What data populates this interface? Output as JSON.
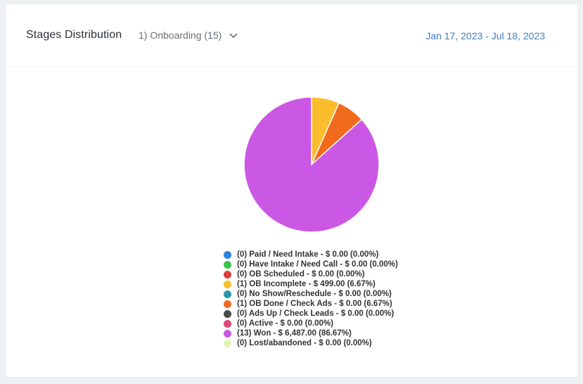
{
  "header": {
    "title": "Stages Distribution",
    "pipeline": "1) Onboarding (15)",
    "date_range": "Jan 17, 2023 - Jul 18, 2023"
  },
  "icons": {
    "dropdown": "chevron-down-icon"
  },
  "chart_data": {
    "type": "pie",
    "start_angle": "top",
    "direction": "clockwise",
    "slices": [
      {
        "label": "(0) Paid / Need Intake - $ 0.00 (0.00%)",
        "count": 0,
        "amount": 0.0,
        "percent": 0.0,
        "color": "#2d7fe0"
      },
      {
        "label": "(0) Have Intake / Need Call - $ 0.00 (0.00%)",
        "count": 0,
        "amount": 0.0,
        "percent": 0.0,
        "color": "#3cc24a"
      },
      {
        "label": "(0) OB Scheduled - $ 0.00 (0.00%)",
        "count": 0,
        "amount": 0.0,
        "percent": 0.0,
        "color": "#dc3d3b"
      },
      {
        "label": "(1) OB Incomplete - $ 499.00 (6.67%)",
        "count": 1,
        "amount": 499.0,
        "percent": 6.67,
        "color": "#fbbd2c"
      },
      {
        "label": "(0) No Show/Reschedule - $ 0.00 (0.00%)",
        "count": 0,
        "amount": 0.0,
        "percent": 0.0,
        "color": "#2a96a3"
      },
      {
        "label": "(1) OB Done / Check Ads - $ 0.00 (6.67%)",
        "count": 1,
        "amount": 0.0,
        "percent": 6.67,
        "color": "#f26a1c"
      },
      {
        "label": "(0) Ads Up / Check Leads - $ 0.00 (0.00%)",
        "count": 0,
        "amount": 0.0,
        "percent": 0.0,
        "color": "#4a4a4a"
      },
      {
        "label": "(0) Active - $ 0.00 (0.00%)",
        "count": 0,
        "amount": 0.0,
        "percent": 0.0,
        "color": "#e0447a"
      },
      {
        "label": "(13) Won - $ 6,487.00 (86.67%)",
        "count": 13,
        "amount": 6487.0,
        "percent": 86.67,
        "color": "#cb58e4"
      },
      {
        "label": "(0) Lost/abandoned - $ 0.00 (0.00%)",
        "count": 0,
        "amount": 0.0,
        "percent": 0.0,
        "color": "#ddf4b4"
      }
    ]
  }
}
